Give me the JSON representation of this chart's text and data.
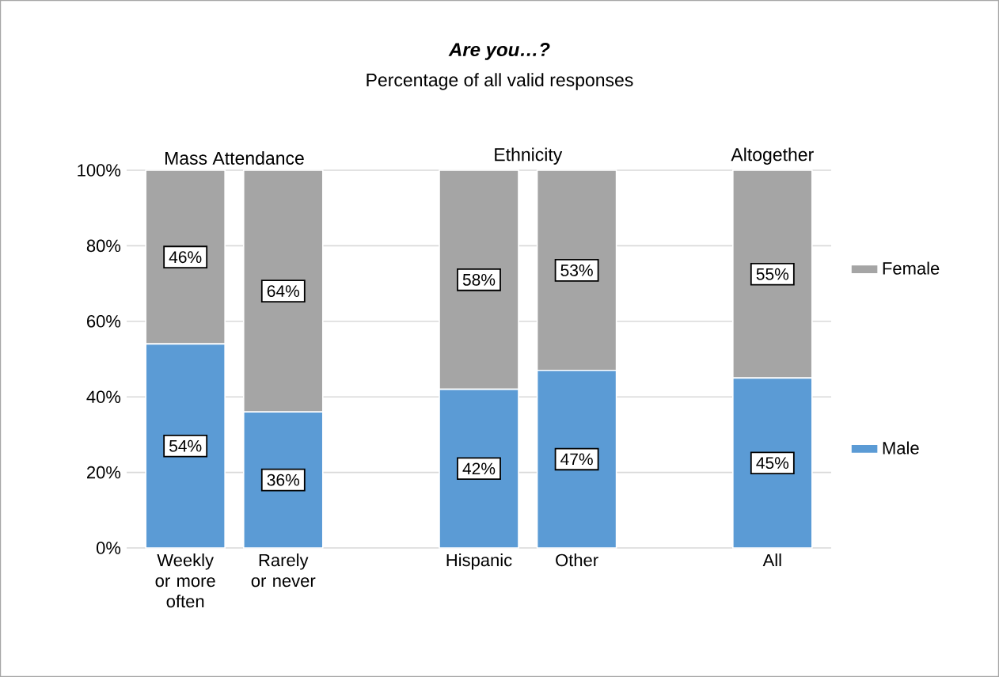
{
  "chart_data": {
    "type": "bar",
    "stacked": true,
    "title": "Are you…?",
    "subtitle": "Percentage of all valid responses",
    "categories": [
      "Weekly or more often",
      "Rarely or never",
      null,
      "Hispanic",
      "Other",
      null,
      "All"
    ],
    "series": [
      {
        "name": "Male",
        "color": "#5b9bd5",
        "values": [
          54,
          36,
          null,
          42,
          47,
          null,
          45
        ],
        "value_labels": [
          "54%",
          "36%",
          null,
          "42%",
          "47%",
          null,
          "45%"
        ]
      },
      {
        "name": "Female",
        "color": "#a5a5a5",
        "values": [
          46,
          64,
          null,
          58,
          53,
          null,
          55
        ],
        "value_labels": [
          "46%",
          "64%",
          null,
          "58%",
          "53%",
          null,
          "55%"
        ]
      }
    ],
    "ylim": [
      0,
      100
    ],
    "yticks": [
      {
        "value": 0,
        "label": "0%"
      },
      {
        "value": 20,
        "label": "20%"
      },
      {
        "value": 40,
        "label": "40%"
      },
      {
        "value": 60,
        "label": "60%"
      },
      {
        "value": 80,
        "label": "80%"
      },
      {
        "value": 100,
        "label": "100%"
      }
    ],
    "grid": "y",
    "legend": "right",
    "annotations": [
      "Mass Attendance",
      "Ethnicity",
      "Altogether"
    ]
  }
}
